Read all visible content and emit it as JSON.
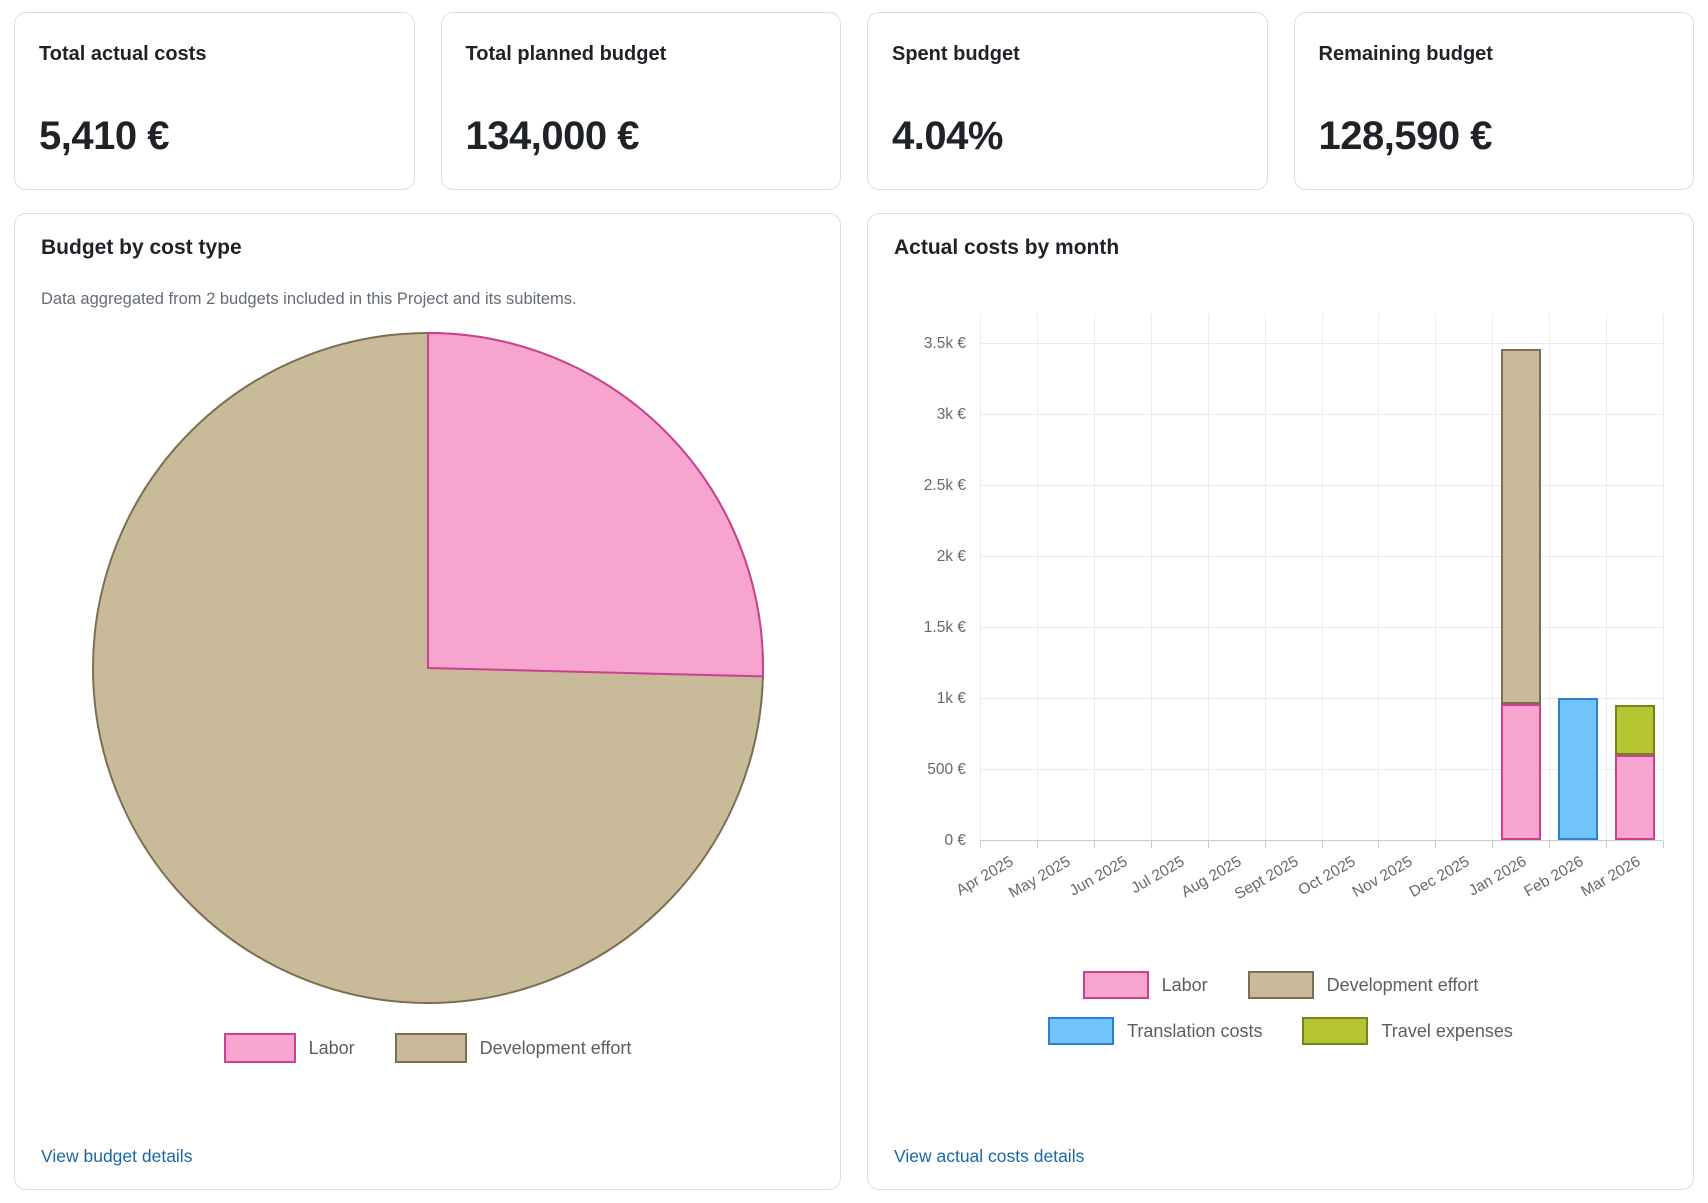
{
  "kpi_cards": [
    {
      "label": "Total actual costs",
      "value": "5,410 €"
    },
    {
      "label": "Total planned budget",
      "value": "134,000 €"
    },
    {
      "label": "Spent budget",
      "value": "4.04%"
    },
    {
      "label": "Remaining budget",
      "value": "128,590 €"
    }
  ],
  "budget_panel": {
    "title": "Budget by cost type",
    "subtitle": "Data aggregated from 2 budgets included in this Project and its subitems.",
    "link_label": "View budget details"
  },
  "actual_costs_panel": {
    "title": "Actual costs by month",
    "link_label": "View actual costs details"
  },
  "colors": {
    "link": "#1a67a3",
    "card_border": "#d8dee4",
    "gridline": "#e9eaec",
    "axis_text": "#65696e"
  },
  "chart_data": [
    {
      "type": "pie",
      "title": "Budget by cost type",
      "labels": [
        "Labor",
        "Development effort"
      ],
      "values_pct": [
        25.4,
        74.6
      ],
      "colors": {
        "fills": [
          "#f7a4cf",
          "#c9ba9a"
        ],
        "borders": [
          "#c9418f",
          "#7b6f52"
        ]
      },
      "legend_position": "bottom"
    },
    {
      "type": "bar",
      "stacked": true,
      "title": "Actual costs by month",
      "categories": [
        "Apr 2025",
        "May 2025",
        "Jun 2025",
        "Jul 2025",
        "Aug 2025",
        "Sept 2025",
        "Oct 2025",
        "Nov 2025",
        "Dec 2025",
        "Jan 2026",
        "Feb 2026",
        "Mar 2026"
      ],
      "series": [
        {
          "name": "Labor",
          "fill": "#f7a4cf",
          "border": "#c9418f",
          "values": [
            0,
            0,
            0,
            0,
            0,
            0,
            0,
            0,
            0,
            960,
            0,
            600
          ]
        },
        {
          "name": "Development effort",
          "fill": "#c9ba9a",
          "border": "#7b6f52",
          "values": [
            0,
            0,
            0,
            0,
            0,
            0,
            0,
            0,
            0,
            2500,
            0,
            0
          ]
        },
        {
          "name": "Translation costs",
          "fill": "#72c3f9",
          "border": "#2d7fd2",
          "values": [
            0,
            0,
            0,
            0,
            0,
            0,
            0,
            0,
            0,
            0,
            1000,
            0
          ]
        },
        {
          "name": "Travel expenses",
          "fill": "#b5c431",
          "border": "#75831c",
          "values": [
            0,
            0,
            0,
            0,
            0,
            0,
            0,
            0,
            0,
            0,
            0,
            350
          ]
        }
      ],
      "y_ticks": [
        "0 €",
        "500 €",
        "1k €",
        "1.5k €",
        "2k €",
        "2.5k €",
        "3k €",
        "3.5k €"
      ],
      "ylim": [
        0,
        3500
      ],
      "grid": true,
      "currency": "€",
      "legend_position": "bottom"
    }
  ]
}
